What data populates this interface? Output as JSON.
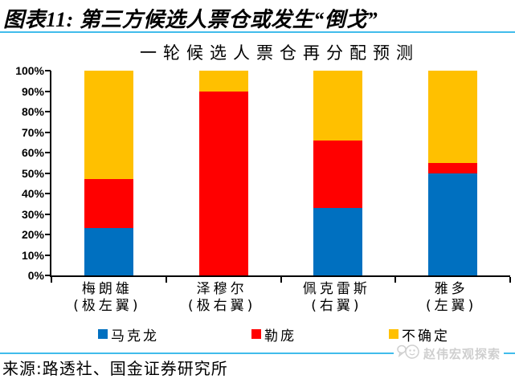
{
  "header": {
    "title": "图表11: 第三方候选人票仓或发生“倒戈”"
  },
  "chart_data": {
    "type": "bar",
    "stacked": true,
    "title": "一轮候选人票仓再分配预测",
    "categories": [
      {
        "name": "梅朗雄",
        "wing": "(极左翼)"
      },
      {
        "name": "泽穆尔",
        "wing": "(极右翼)"
      },
      {
        "name": "佩克雷斯",
        "wing": "(右翼)"
      },
      {
        "name": "雅多",
        "wing": "(左翼)"
      }
    ],
    "series": [
      {
        "name": "马克龙",
        "color": "#0070C0",
        "values": [
          23,
          0,
          33,
          50
        ]
      },
      {
        "name": "勒庞",
        "color": "#FF0000",
        "values": [
          24,
          90,
          33,
          5
        ]
      },
      {
        "name": "不确定",
        "color": "#FFC000",
        "values": [
          53,
          10,
          34,
          45
        ]
      }
    ],
    "ylim": [
      0,
      100
    ],
    "yticks": [
      "0%",
      "10%",
      "20%",
      "30%",
      "40%",
      "50%",
      "60%",
      "70%",
      "80%",
      "90%",
      "100%"
    ],
    "legend_position": "bottom",
    "grid": false
  },
  "footer": {
    "source": "来源:路透社、国金证券研究所",
    "watermark": "赵伟宏观探索"
  },
  "colors": {
    "divider_blue": "#41BCEB",
    "axis_black": "#000000",
    "macron_blue": "#0070C0",
    "lepen_red": "#FF0000",
    "uncertain_yellow": "#FFC000",
    "watermark_gray": "#CFCFCF"
  }
}
